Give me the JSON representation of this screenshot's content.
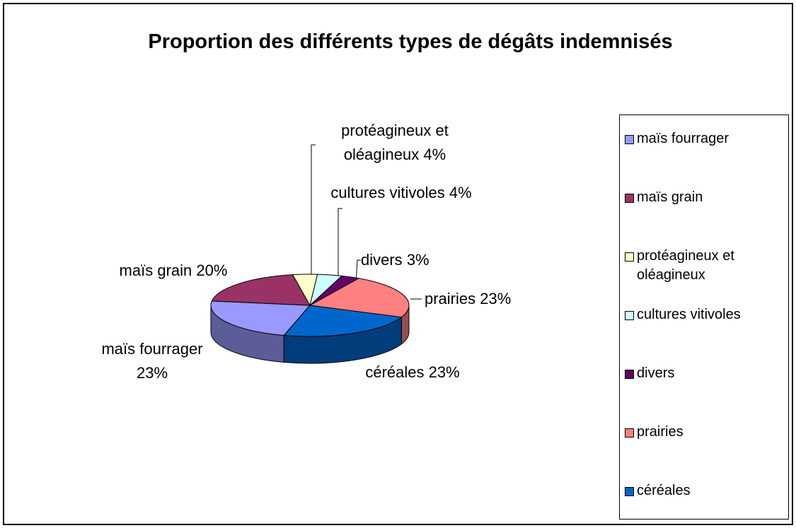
{
  "chart_data": {
    "type": "pie3d",
    "title": "Proportion des différents types de dégâts indemnisés",
    "categories": [
      "maïs fourrager",
      "maïs grain",
      "protéagineux et oléagineux",
      "cultures vitivoles",
      "divers",
      "prairies",
      "céréales"
    ],
    "values": [
      23,
      20,
      4,
      4,
      3,
      23,
      23
    ],
    "value_labels": [
      "23%",
      "20%",
      "4%",
      "4%",
      "3%",
      "23%",
      "23%"
    ],
    "colors": [
      "#9999ff",
      "#993366",
      "#ffffcc",
      "#ccffff",
      "#660066",
      "#ff8080",
      "#0066cc"
    ],
    "legend": "right"
  }
}
